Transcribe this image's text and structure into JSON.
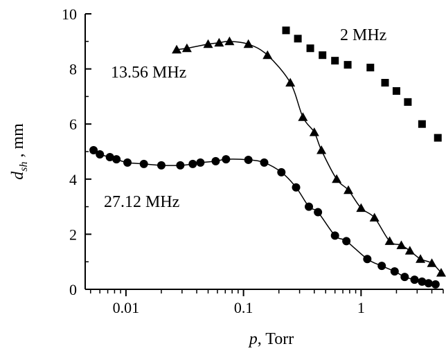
{
  "chart_data": {
    "type": "scatter",
    "xscale": "log",
    "xlim": [
      0.0045,
      5
    ],
    "ylim": [
      0,
      10
    ],
    "x_tick_labels": [
      "0.01",
      "0.1",
      "1"
    ],
    "y_tick_labels": [
      "0",
      "2",
      "4",
      "6",
      "8",
      "10"
    ],
    "xlabel": {
      "var": "p",
      "rest": ", Torr"
    },
    "ylabel": {
      "var": "d",
      "sub": "sh",
      "rest": " , mm"
    },
    "grid": false,
    "series": [
      {
        "name": "2 MHz",
        "marker": "square",
        "x": [
          0.23,
          0.29,
          0.37,
          0.47,
          0.6,
          0.77,
          1.2,
          1.6,
          2.0,
          2.5,
          3.3,
          4.5
        ],
        "y": [
          9.4,
          9.1,
          8.75,
          8.5,
          8.3,
          8.15,
          8.05,
          7.5,
          7.2,
          6.8,
          6.0,
          5.5
        ]
      },
      {
        "name": "13.56 MHz",
        "marker": "triangle",
        "x": [
          0.027,
          0.033,
          0.05,
          0.062,
          0.076,
          0.11,
          0.16,
          0.25,
          0.32,
          0.4,
          0.46,
          0.62,
          0.78,
          1.0,
          1.3,
          1.75,
          2.2,
          2.6,
          3.2,
          4.0,
          4.8
        ],
        "y": [
          8.7,
          8.75,
          8.9,
          8.95,
          9.0,
          8.9,
          8.5,
          7.5,
          6.25,
          5.7,
          5.05,
          4.0,
          3.6,
          2.95,
          2.6,
          1.75,
          1.6,
          1.4,
          1.1,
          0.95,
          0.6
        ]
      },
      {
        "name": "27.12 MHz",
        "marker": "circle",
        "x": [
          0.0053,
          0.006,
          0.0073,
          0.0083,
          0.0103,
          0.0142,
          0.02,
          0.029,
          0.037,
          0.043,
          0.058,
          0.071,
          0.11,
          0.15,
          0.21,
          0.28,
          0.36,
          0.43,
          0.6,
          0.75,
          1.13,
          1.5,
          1.93,
          2.35,
          2.85,
          3.3,
          3.75,
          4.3
        ],
        "y": [
          5.05,
          4.9,
          4.8,
          4.72,
          4.6,
          4.55,
          4.5,
          4.5,
          4.55,
          4.6,
          4.65,
          4.72,
          4.7,
          4.6,
          4.25,
          3.7,
          3.0,
          2.8,
          1.95,
          1.75,
          1.1,
          0.85,
          0.65,
          0.45,
          0.35,
          0.28,
          0.22,
          0.18
        ]
      }
    ]
  }
}
